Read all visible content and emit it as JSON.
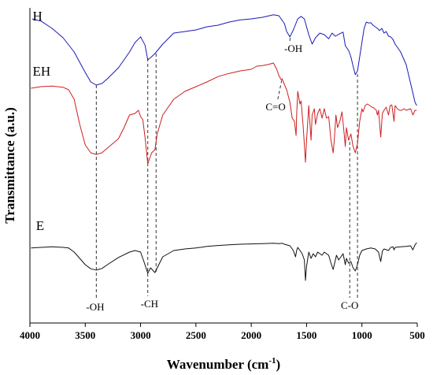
{
  "chart_data": {
    "type": "line",
    "title": "",
    "xlabel": "Wavenumber (cm",
    "xlabel_sup": "-1",
    "xlabel_close": ")",
    "ylabel": "Transmittance (a.u.)",
    "xlim": [
      4000,
      500
    ],
    "ylim": [
      0,
      100
    ],
    "x_reversed": true,
    "xticks": [
      4000,
      3500,
      3000,
      2500,
      2000,
      1500,
      1000,
      500
    ],
    "xtick_labels": [
      "4000",
      "3500",
      "3000",
      "2500",
      "2000",
      "1500",
      "1000",
      "500"
    ],
    "grid": false,
    "series": [
      {
        "name": "H",
        "color": "#1a1ab8",
        "points": [
          [
            3980,
            96.5
          ],
          [
            3900,
            95.8
          ],
          [
            3800,
            93.5
          ],
          [
            3700,
            90.5
          ],
          [
            3600,
            86
          ],
          [
            3500,
            79.5
          ],
          [
            3450,
            76.5
          ],
          [
            3400,
            75.5
          ],
          [
            3350,
            76
          ],
          [
            3300,
            77.5
          ],
          [
            3200,
            81
          ],
          [
            3100,
            86
          ],
          [
            3050,
            89
          ],
          [
            3000,
            90.8
          ],
          [
            2960,
            88.2
          ],
          [
            2935,
            83.5
          ],
          [
            2900,
            84.5
          ],
          [
            2870,
            85.5
          ],
          [
            2800,
            88.5
          ],
          [
            2700,
            92
          ],
          [
            2600,
            92.5
          ],
          [
            2500,
            93
          ],
          [
            2400,
            94
          ],
          [
            2300,
            94.5
          ],
          [
            2200,
            95.5
          ],
          [
            2100,
            96.2
          ],
          [
            2000,
            96.5
          ],
          [
            1900,
            97
          ],
          [
            1800,
            97.8
          ],
          [
            1750,
            97.5
          ],
          [
            1700,
            95
          ],
          [
            1680,
            92.5
          ],
          [
            1650,
            90.8
          ],
          [
            1620,
            93
          ],
          [
            1580,
            96.5
          ],
          [
            1550,
            97.3
          ],
          [
            1520,
            96.5
          ],
          [
            1480,
            91.5
          ],
          [
            1450,
            88.5
          ],
          [
            1420,
            90.5
          ],
          [
            1380,
            92
          ],
          [
            1340,
            91.5
          ],
          [
            1300,
            90.2
          ],
          [
            1270,
            92
          ],
          [
            1240,
            91
          ],
          [
            1200,
            91.8
          ],
          [
            1170,
            92.3
          ],
          [
            1150,
            88
          ],
          [
            1120,
            86.5
          ],
          [
            1100,
            84.5
          ],
          [
            1080,
            81.5
          ],
          [
            1060,
            78.8
          ],
          [
            1040,
            80
          ],
          [
            1020,
            84.5
          ],
          [
            1000,
            89
          ],
          [
            980,
            93.5
          ],
          [
            960,
            95.5
          ],
          [
            940,
            95.2
          ],
          [
            920,
            95.3
          ],
          [
            900,
            94.5
          ],
          [
            880,
            94
          ],
          [
            860,
            93.5
          ],
          [
            840,
            92.8
          ],
          [
            820,
            93.5
          ],
          [
            800,
            92
          ],
          [
            780,
            92.5
          ],
          [
            760,
            91
          ],
          [
            740,
            90.8
          ],
          [
            720,
            90
          ],
          [
            700,
            88.5
          ],
          [
            650,
            86
          ],
          [
            600,
            82
          ],
          [
            560,
            76
          ],
          [
            520,
            70
          ],
          [
            505,
            69
          ]
        ]
      },
      {
        "name": "EH",
        "color": "#cc1f1f",
        "points": [
          [
            3990,
            74.5
          ],
          [
            3900,
            75
          ],
          [
            3800,
            75.2
          ],
          [
            3700,
            74.8
          ],
          [
            3650,
            74
          ],
          [
            3600,
            71
          ],
          [
            3550,
            63
          ],
          [
            3500,
            56.5
          ],
          [
            3450,
            54
          ],
          [
            3400,
            53.5
          ],
          [
            3350,
            54
          ],
          [
            3300,
            55.5
          ],
          [
            3200,
            58.5
          ],
          [
            3150,
            62
          ],
          [
            3100,
            66
          ],
          [
            3050,
            66.5
          ],
          [
            3020,
            67.5
          ],
          [
            3000,
            65.5
          ],
          [
            2980,
            64.5
          ],
          [
            2960,
            59
          ],
          [
            2935,
            50.5
          ],
          [
            2900,
            54
          ],
          [
            2870,
            55
          ],
          [
            2850,
            60
          ],
          [
            2800,
            66
          ],
          [
            2700,
            71
          ],
          [
            2600,
            73.5
          ],
          [
            2500,
            75
          ],
          [
            2400,
            76.5
          ],
          [
            2300,
            78.2
          ],
          [
            2200,
            79.2
          ],
          [
            2100,
            80
          ],
          [
            2000,
            80.5
          ],
          [
            1950,
            81.5
          ],
          [
            1900,
            81.7
          ],
          [
            1850,
            82
          ],
          [
            1800,
            82.5
          ],
          [
            1770,
            80.5
          ],
          [
            1750,
            78.5
          ],
          [
            1730,
            77.2
          ],
          [
            1720,
            77.5
          ],
          [
            1710,
            76.5
          ],
          [
            1680,
            74
          ],
          [
            1650,
            70
          ],
          [
            1630,
            65
          ],
          [
            1610,
            64
          ],
          [
            1595,
            59.5
          ],
          [
            1590,
            66
          ],
          [
            1580,
            73.5
          ],
          [
            1560,
            69.5
          ],
          [
            1550,
            70.5
          ],
          [
            1530,
            62
          ],
          [
            1510,
            51
          ],
          [
            1500,
            58
          ],
          [
            1480,
            69
          ],
          [
            1460,
            58
          ],
          [
            1450,
            66
          ],
          [
            1430,
            68
          ],
          [
            1420,
            63
          ],
          [
            1400,
            66.5
          ],
          [
            1380,
            68
          ],
          [
            1360,
            65
          ],
          [
            1340,
            68
          ],
          [
            1320,
            65
          ],
          [
            1300,
            65.5
          ],
          [
            1280,
            58
          ],
          [
            1260,
            54
          ],
          [
            1250,
            58
          ],
          [
            1235,
            66
          ],
          [
            1220,
            62
          ],
          [
            1200,
            64
          ],
          [
            1180,
            67
          ],
          [
            1160,
            60
          ],
          [
            1150,
            56
          ],
          [
            1140,
            62
          ],
          [
            1120,
            58
          ],
          [
            1100,
            60
          ],
          [
            1080,
            56
          ],
          [
            1060,
            54
          ],
          [
            1040,
            57
          ],
          [
            1020,
            64
          ],
          [
            1000,
            68
          ],
          [
            990,
            67
          ],
          [
            970,
            69
          ],
          [
            950,
            69.5
          ],
          [
            930,
            69
          ],
          [
            910,
            68.5
          ],
          [
            890,
            68.2
          ],
          [
            870,
            67.5
          ],
          [
            860,
            66
          ],
          [
            850,
            67.5
          ],
          [
            830,
            59
          ],
          [
            815,
            66.5
          ],
          [
            800,
            67.5
          ],
          [
            780,
            68.5
          ],
          [
            760,
            66
          ],
          [
            745,
            69
          ],
          [
            730,
            69.2
          ],
          [
            710,
            64
          ],
          [
            700,
            69
          ],
          [
            680,
            68
          ],
          [
            660,
            67.5
          ],
          [
            640,
            67.5
          ],
          [
            620,
            68
          ],
          [
            600,
            67.5
          ],
          [
            560,
            68
          ],
          [
            540,
            66
          ],
          [
            520,
            67.5
          ],
          [
            505,
            67.5
          ]
        ]
      },
      {
        "name": "E",
        "color": "#111111",
        "points": [
          [
            3990,
            23.8
          ],
          [
            3900,
            24
          ],
          [
            3800,
            24.2
          ],
          [
            3700,
            24
          ],
          [
            3650,
            23.8
          ],
          [
            3600,
            22.5
          ],
          [
            3550,
            20.5
          ],
          [
            3500,
            18.5
          ],
          [
            3450,
            17.2
          ],
          [
            3400,
            16.8
          ],
          [
            3350,
            17.3
          ],
          [
            3300,
            18.5
          ],
          [
            3200,
            20.8
          ],
          [
            3100,
            22.5
          ],
          [
            3050,
            23
          ],
          [
            3000,
            22.5
          ],
          [
            2970,
            19.5
          ],
          [
            2935,
            15.8
          ],
          [
            2910,
            17.5
          ],
          [
            2870,
            16
          ],
          [
            2850,
            17.5
          ],
          [
            2800,
            21
          ],
          [
            2700,
            23
          ],
          [
            2600,
            23.5
          ],
          [
            2500,
            23.8
          ],
          [
            2400,
            24.3
          ],
          [
            2300,
            24.6
          ],
          [
            2200,
            24.8
          ],
          [
            2100,
            25
          ],
          [
            2000,
            25.1
          ],
          [
            1900,
            25.2
          ],
          [
            1800,
            25.3
          ],
          [
            1750,
            25.2
          ],
          [
            1720,
            25.3
          ],
          [
            1700,
            25
          ],
          [
            1650,
            24.5
          ],
          [
            1620,
            23
          ],
          [
            1600,
            21
          ],
          [
            1590,
            23
          ],
          [
            1580,
            24
          ],
          [
            1560,
            23
          ],
          [
            1540,
            22
          ],
          [
            1520,
            20
          ],
          [
            1510,
            13.5
          ],
          [
            1500,
            18
          ],
          [
            1480,
            22.5
          ],
          [
            1460,
            20.5
          ],
          [
            1440,
            22
          ],
          [
            1420,
            21
          ],
          [
            1400,
            22.5
          ],
          [
            1380,
            22
          ],
          [
            1360,
            21.5
          ],
          [
            1340,
            22.5
          ],
          [
            1300,
            21.5
          ],
          [
            1280,
            19
          ],
          [
            1260,
            17
          ],
          [
            1250,
            18.5
          ],
          [
            1230,
            21.5
          ],
          [
            1210,
            20
          ],
          [
            1190,
            21
          ],
          [
            1170,
            22
          ],
          [
            1150,
            18.5
          ],
          [
            1140,
            20.5
          ],
          [
            1120,
            19
          ],
          [
            1100,
            19.5
          ],
          [
            1080,
            17.5
          ],
          [
            1060,
            16.5
          ],
          [
            1040,
            18.5
          ],
          [
            1020,
            21.5
          ],
          [
            1000,
            23
          ],
          [
            960,
            23.5
          ],
          [
            920,
            23.8
          ],
          [
            880,
            23.5
          ],
          [
            850,
            22.5
          ],
          [
            830,
            19.5
          ],
          [
            815,
            22.8
          ],
          [
            800,
            23.5
          ],
          [
            760,
            23
          ],
          [
            740,
            24
          ],
          [
            720,
            24.2
          ],
          [
            710,
            23.2
          ],
          [
            700,
            24
          ],
          [
            650,
            24.2
          ],
          [
            600,
            24.3
          ],
          [
            560,
            24.5
          ],
          [
            540,
            23.2
          ],
          [
            520,
            24.8
          ],
          [
            505,
            25.5
          ]
        ]
      }
    ],
    "series_labels": [
      {
        "text": "H",
        "x": 3975,
        "y": 96
      },
      {
        "text": "EH",
        "x": 3975,
        "y": 78.5
      },
      {
        "text": "E",
        "x": 3945,
        "y": 29.5
      }
    ],
    "annotations": [
      {
        "text": "-OH",
        "label_x": 3410,
        "label_y": 4,
        "line_x": 3400,
        "line_y_top": 75.5,
        "line_y_bottom": 7.5
      },
      {
        "text": "-CH",
        "label_x": 2920,
        "label_y": 5,
        "line_x": 2935,
        "line_y_top": 84,
        "line_y_bottom": 8.5
      },
      {
        "text": "",
        "line_x": 2860,
        "line_y_top": 85.5,
        "line_y_bottom": 15.5
      },
      {
        "text": "-OH",
        "label_x": 1620,
        "label_y": 86,
        "line_x": 1650,
        "line_y_top": 90.5,
        "line_y_bottom": 89
      },
      {
        "text": "C=O",
        "label_x": 1780,
        "label_y": 67.5,
        "diag": [
          1760,
          71,
          1725,
          77
        ]
      },
      {
        "text": "C-O",
        "label_x": 1110,
        "label_y": 4.5,
        "line_x": 1040,
        "line_y_top": 79,
        "line_y_bottom": 8
      },
      {
        "text": "",
        "line_x": 1110,
        "line_y_top": 57.5,
        "line_y_bottom": 8
      }
    ]
  }
}
